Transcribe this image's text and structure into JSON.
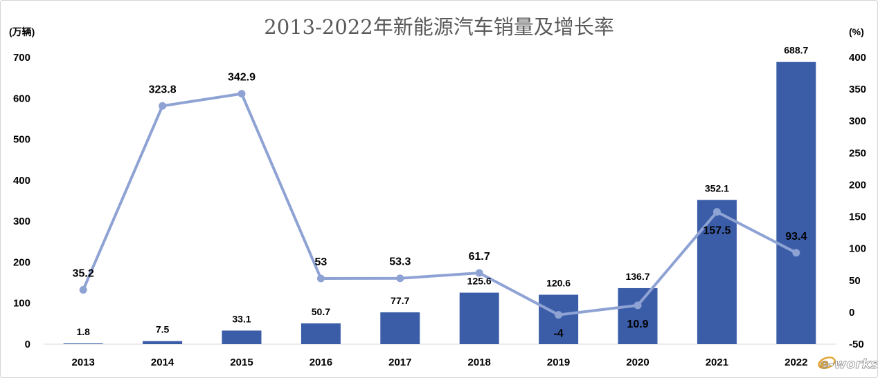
{
  "logo": "e-works",
  "chart_data": {
    "type": "bar",
    "title": "2013-2022年新能源汽车销量及增长率",
    "categories": [
      "2013",
      "2014",
      "2015",
      "2016",
      "2017",
      "2018",
      "2019",
      "2020",
      "2021",
      "2022"
    ],
    "series": [
      {
        "type": "bar",
        "axis": "left",
        "color": "#3B5DA8",
        "values": [
          1.8,
          7.5,
          33.1,
          50.7,
          77.7,
          125.6,
          120.6,
          136.7,
          352.1,
          688.7
        ]
      },
      {
        "type": "line",
        "axis": "right",
        "color": "#8EA2D4",
        "values": [
          35.2,
          323.8,
          342.9,
          53,
          53.3,
          61.7,
          -4,
          10.9,
          157.5,
          93.4
        ]
      }
    ],
    "y_left": {
      "label": "(万辆)",
      "range": [
        0,
        700
      ],
      "ticks": [
        0,
        100,
        200,
        300,
        400,
        500,
        600,
        700
      ]
    },
    "y_right": {
      "label": "(%)",
      "range": [
        -50,
        400
      ],
      "ticks": [
        -50,
        0,
        50,
        100,
        150,
        200,
        250,
        300,
        350,
        400
      ]
    },
    "grid": false,
    "legend": "none"
  }
}
